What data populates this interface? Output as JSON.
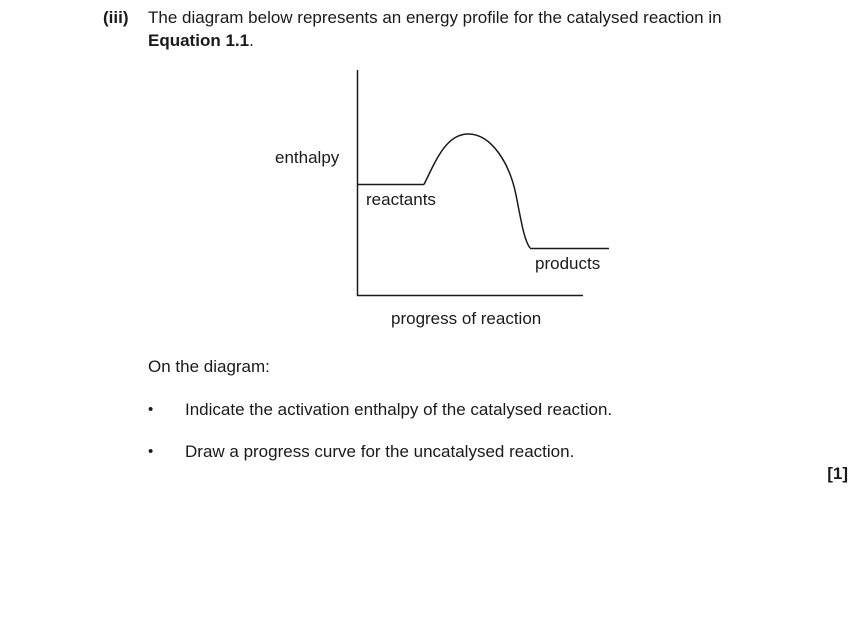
{
  "question": {
    "number": "(iii)",
    "text_line1": "The diagram below represents an energy profile for the catalysed reaction in",
    "equation_ref": "Equation 1.1",
    "text_line2_suffix": "."
  },
  "diagram": {
    "y_axis_label": "enthalpy",
    "x_axis_label": "progress of reaction",
    "reactants_label": "reactants",
    "products_label": "products"
  },
  "instructions": {
    "intro": "On the diagram:",
    "items": [
      {
        "bullet": "•",
        "text": "Indicate the activation enthalpy of the catalysed reaction."
      },
      {
        "bullet": "•",
        "text": "Draw a progress curve for the uncatalysed reaction."
      }
    ]
  },
  "marks": "[1]"
}
